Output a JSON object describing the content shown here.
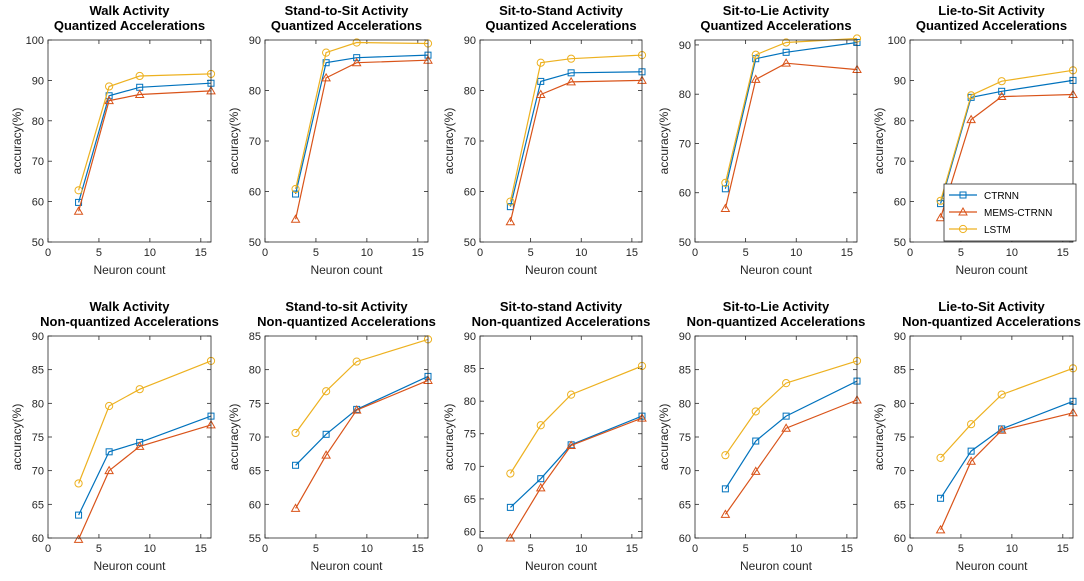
{
  "colors": {
    "ctrnn": "#0072BD",
    "mems": "#D95319",
    "lstm": "#EDB120"
  },
  "legend": {
    "entries": [
      "CTRNN",
      "MEMS-CTRNN",
      "LSTM"
    ],
    "placement": "bottom-right of Lie-to-Sit quantized panel"
  },
  "chart_data": [
    {
      "type": "line",
      "title": [
        "Walk Activity",
        "Quantized Accelerations"
      ],
      "xlabel": "Neuron count",
      "ylabel": "accuracy(%)",
      "xlim": [
        0,
        16
      ],
      "xticks": [
        0,
        5,
        10,
        15
      ],
      "ylim": [
        50,
        100
      ],
      "yticks": [
        50,
        60,
        70,
        80,
        90,
        100
      ],
      "x": [
        3,
        6,
        9,
        16
      ],
      "series": [
        {
          "name": "CTRNN",
          "values": [
            59.8,
            86.2,
            88.3,
            89.3
          ]
        },
        {
          "name": "MEMS-CTRNN",
          "values": [
            57.6,
            85.0,
            86.5,
            87.4
          ]
        },
        {
          "name": "LSTM",
          "values": [
            62.8,
            88.5,
            91.1,
            91.6
          ]
        }
      ]
    },
    {
      "type": "line",
      "title": [
        "Stand-to-Sit Activity",
        "Quantized Accelerations"
      ],
      "xlabel": "Neuron count",
      "ylabel": "accuracy(%)",
      "xlim": [
        0,
        16
      ],
      "xticks": [
        0,
        5,
        10,
        15
      ],
      "ylim": [
        50,
        90
      ],
      "yticks": [
        50,
        60,
        70,
        80,
        90
      ],
      "x": [
        3,
        6,
        9,
        16
      ],
      "series": [
        {
          "name": "CTRNN",
          "values": [
            59.5,
            85.5,
            86.5,
            87.0
          ]
        },
        {
          "name": "MEMS-CTRNN",
          "values": [
            54.5,
            82.5,
            85.5,
            86.0
          ]
        },
        {
          "name": "LSTM",
          "values": [
            60.5,
            87.5,
            89.5,
            89.3
          ]
        }
      ]
    },
    {
      "type": "line",
      "title": [
        "Sit-to-Stand Activity",
        "Quantized Accelerations"
      ],
      "xlabel": "Neuron count",
      "ylabel": "accuracy(%)",
      "xlim": [
        0,
        16
      ],
      "xticks": [
        0,
        5,
        10,
        15
      ],
      "ylim": [
        50,
        90
      ],
      "yticks": [
        50,
        60,
        70,
        80,
        90
      ],
      "x": [
        3,
        6,
        9,
        16
      ],
      "series": [
        {
          "name": "CTRNN",
          "values": [
            57.0,
            81.8,
            83.5,
            83.7
          ]
        },
        {
          "name": "MEMS-CTRNN",
          "values": [
            54.0,
            79.2,
            81.7,
            82.0
          ]
        },
        {
          "name": "LSTM",
          "values": [
            58.0,
            85.5,
            86.3,
            87.0
          ]
        }
      ]
    },
    {
      "type": "line",
      "title": [
        "Sit-to-Lie Activity",
        "Quantized Accelerations"
      ],
      "xlabel": "Neuron count",
      "ylabel": "accuracy(%)",
      "xlim": [
        0,
        16
      ],
      "xticks": [
        0,
        5,
        10,
        15
      ],
      "ylim": [
        50,
        91
      ],
      "yticks": [
        50,
        60,
        70,
        80,
        90
      ],
      "x": [
        3,
        6,
        9,
        16
      ],
      "series": [
        {
          "name": "CTRNN",
          "values": [
            60.8,
            87.2,
            88.5,
            90.5
          ]
        },
        {
          "name": "MEMS-CTRNN",
          "values": [
            56.8,
            83.0,
            86.3,
            85.0
          ]
        },
        {
          "name": "LSTM",
          "values": [
            62.0,
            88.0,
            90.5,
            91.3
          ]
        }
      ]
    },
    {
      "type": "line",
      "title": [
        "Lie-to-Sit Activity",
        "Quantized Accelerations"
      ],
      "xlabel": "Neuron count",
      "ylabel": "accuracy(%)",
      "xlim": [
        0,
        16
      ],
      "xticks": [
        0,
        5,
        10,
        15
      ],
      "ylim": [
        50,
        100
      ],
      "yticks": [
        50,
        60,
        70,
        80,
        90,
        100
      ],
      "x": [
        3,
        6,
        9,
        16
      ],
      "series": [
        {
          "name": "CTRNN",
          "values": [
            59.5,
            85.8,
            87.3,
            90.0
          ]
        },
        {
          "name": "MEMS-CTRNN",
          "values": [
            56.0,
            80.3,
            86.0,
            86.5
          ]
        },
        {
          "name": "LSTM",
          "values": [
            60.2,
            86.3,
            89.8,
            92.5
          ]
        }
      ]
    },
    {
      "type": "line",
      "title": [
        "Walk Activity",
        "Non-quantized Accelerations"
      ],
      "xlabel": "Neuron count",
      "ylabel": "accuracy(%)",
      "xlim": [
        0,
        16
      ],
      "xticks": [
        0,
        5,
        10,
        15
      ],
      "ylim": [
        60,
        90
      ],
      "yticks": [
        60,
        65,
        70,
        75,
        80,
        85,
        90
      ],
      "x": [
        3,
        6,
        9,
        16
      ],
      "series": [
        {
          "name": "CTRNN",
          "values": [
            63.4,
            72.8,
            74.2,
            78.1
          ]
        },
        {
          "name": "MEMS-CTRNN",
          "values": [
            59.8,
            70.0,
            73.6,
            76.8
          ]
        },
        {
          "name": "LSTM",
          "values": [
            68.1,
            79.6,
            82.1,
            86.3
          ]
        }
      ]
    },
    {
      "type": "line",
      "title": [
        "Stand-to-sit Activity",
        "Non-quantized Accelerations"
      ],
      "xlabel": "Neuron count",
      "ylabel": "accuracy(%)",
      "xlim": [
        0,
        16
      ],
      "xticks": [
        0,
        5,
        10,
        15
      ],
      "ylim": [
        55,
        85
      ],
      "yticks": [
        55,
        60,
        65,
        70,
        75,
        80,
        85
      ],
      "x": [
        3,
        6,
        9,
        16
      ],
      "series": [
        {
          "name": "CTRNN",
          "values": [
            65.8,
            70.4,
            74.1,
            79.0
          ]
        },
        {
          "name": "MEMS-CTRNN",
          "values": [
            59.4,
            67.3,
            74.0,
            78.4
          ]
        },
        {
          "name": "LSTM",
          "values": [
            70.6,
            76.8,
            81.2,
            84.5
          ]
        }
      ]
    },
    {
      "type": "line",
      "title": [
        "Sit-to-stand Activity",
        "Non-quantized Accelerations"
      ],
      "xlabel": "Neuron count",
      "ylabel": "accuracy(%)",
      "xlim": [
        0,
        16
      ],
      "xticks": [
        0,
        5,
        10,
        15
      ],
      "ylim": [
        59,
        90
      ],
      "yticks": [
        60,
        65,
        70,
        75,
        80,
        85,
        90
      ],
      "x": [
        3,
        6,
        9,
        16
      ],
      "series": [
        {
          "name": "CTRNN",
          "values": [
            63.7,
            68.1,
            73.3,
            77.7
          ]
        },
        {
          "name": "MEMS-CTRNN",
          "values": [
            59.0,
            66.7,
            73.2,
            77.4
          ]
        },
        {
          "name": "LSTM",
          "values": [
            68.9,
            76.3,
            81.0,
            85.4
          ]
        }
      ]
    },
    {
      "type": "line",
      "title": [
        "Sit-to-Lie Activity",
        "Non-quantized Accelerations"
      ],
      "xlabel": "Neuron count",
      "ylabel": "accuracy(%)",
      "xlim": [
        0,
        16
      ],
      "xticks": [
        0,
        5,
        10,
        15
      ],
      "ylim": [
        60,
        90
      ],
      "yticks": [
        60,
        65,
        70,
        75,
        80,
        85,
        90
      ],
      "x": [
        3,
        6,
        9,
        16
      ],
      "series": [
        {
          "name": "CTRNN",
          "values": [
            67.3,
            74.4,
            78.1,
            83.3
          ]
        },
        {
          "name": "MEMS-CTRNN",
          "values": [
            63.5,
            69.9,
            76.3,
            80.5
          ]
        },
        {
          "name": "LSTM",
          "values": [
            72.3,
            78.8,
            83.0,
            86.3
          ]
        }
      ]
    },
    {
      "type": "line",
      "title": [
        "Lie-to-Sit Activity",
        "Non-quantized Accelerations"
      ],
      "xlabel": "Neuron count",
      "ylabel": "accuracy(%)",
      "xlim": [
        0,
        16
      ],
      "xticks": [
        0,
        5,
        10,
        15
      ],
      "ylim": [
        60,
        90
      ],
      "yticks": [
        60,
        65,
        70,
        75,
        80,
        85,
        90
      ],
      "x": [
        3,
        6,
        9,
        16
      ],
      "series": [
        {
          "name": "CTRNN",
          "values": [
            65.9,
            72.9,
            76.2,
            80.3
          ]
        },
        {
          "name": "MEMS-CTRNN",
          "values": [
            61.2,
            71.4,
            76.0,
            78.6
          ]
        },
        {
          "name": "LSTM",
          "values": [
            71.9,
            76.9,
            81.3,
            85.2
          ]
        }
      ]
    }
  ]
}
